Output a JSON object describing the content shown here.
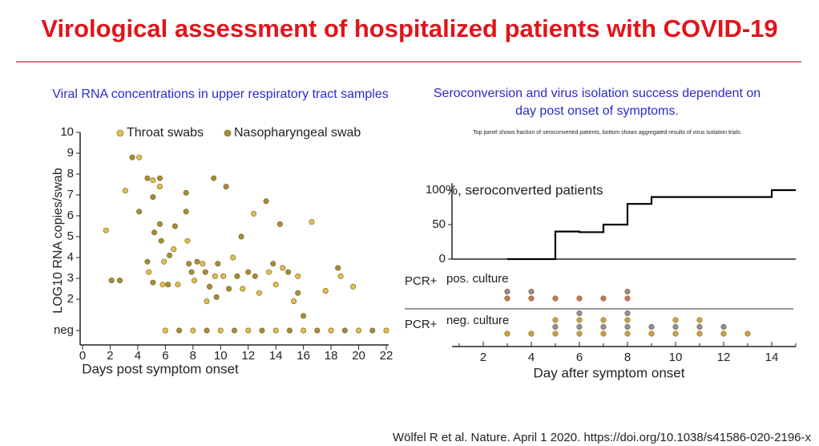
{
  "title": "Virological assessment of hospitalized patients with COVID-19",
  "citation": "Wölfel R et al. Nature. April 1 2020. https://doi.org/10.1038/s41586-020-2196-x",
  "chart_data": [
    {
      "type": "scatter",
      "title": "Viral RNA concentrations in upper respiratory tract samples",
      "xlabel": "Days post symptom onset",
      "ylabel": "LOG10 RNA copies/swab",
      "xlim": [
        0,
        22
      ],
      "xticks": [
        0,
        2,
        4,
        6,
        8,
        10,
        12,
        14,
        16,
        18,
        20,
        22
      ],
      "ylim": [
        0,
        10
      ],
      "yticks": [
        {
          "value": 0.5,
          "label": "neg"
        },
        2,
        3,
        4,
        5,
        6,
        7,
        8,
        9,
        10
      ],
      "series": [
        {
          "name": "Throat swabs",
          "color": "#e3c04c",
          "x": [
            1.7,
            3.1,
            4.1,
            5.1,
            5.6,
            4.8,
            5.8,
            5.9,
            6.6,
            6.9,
            7.6,
            8.1,
            8.7,
            9.0,
            9.6,
            10.2,
            10.9,
            11.6,
            12.4,
            12.8,
            13.5,
            14.0,
            14.5,
            15.3,
            15.6,
            16.6,
            17.6,
            18.7,
            19.6,
            6,
            8,
            10,
            12,
            14,
            16,
            18,
            20,
            22
          ],
          "values": [
            5.3,
            7.2,
            8.8,
            7.7,
            7.4,
            3.3,
            2.7,
            3.8,
            4.4,
            2.7,
            4.8,
            2.9,
            3.7,
            1.9,
            3.1,
            3.1,
            4.0,
            2.5,
            6.1,
            2.3,
            3.3,
            2.7,
            3.5,
            1.9,
            3.1,
            5.7,
            2.4,
            3.1,
            2.6,
            0.5,
            0.5,
            0.5,
            0.5,
            0.5,
            0.5,
            0.5,
            0.5,
            0.5
          ]
        },
        {
          "name": "Nasopharyngeal swab",
          "color": "#a88c3a",
          "x": [
            2.1,
            2.7,
            3.6,
            4.1,
            4.7,
            5.1,
            5.6,
            4.7,
            5.1,
            5.2,
            5.6,
            5.7,
            6.2,
            6.3,
            6.7,
            7.5,
            7.5,
            7.7,
            7.9,
            8.3,
            8.9,
            9.2,
            9.5,
            9.7,
            9.8,
            10.4,
            10.6,
            11.2,
            11.5,
            12.0,
            12.5,
            13.3,
            13.8,
            14.3,
            14.9,
            15.6,
            16.0,
            18.5,
            7,
            9,
            11,
            13,
            15,
            17,
            19,
            21
          ],
          "values": [
            2.9,
            2.9,
            8.8,
            6.2,
            7.8,
            6.9,
            7.8,
            3.8,
            2.8,
            5.2,
            5.6,
            4.8,
            2.7,
            4.1,
            5.5,
            7.1,
            6.2,
            3.7,
            3.3,
            3.8,
            3.3,
            2.6,
            7.8,
            2.1,
            3.7,
            7.4,
            2.5,
            3.1,
            5.0,
            3.3,
            3.1,
            6.7,
            3.7,
            5.6,
            3.3,
            2.3,
            1.2,
            3.5,
            0.5,
            0.5,
            0.5,
            0.5,
            0.5,
            0.5,
            0.5,
            0.5
          ]
        }
      ]
    },
    {
      "type": "step",
      "label": "%, seroconverted patients",
      "color": "#000000",
      "x": [
        3,
        5,
        6,
        7,
        8,
        9,
        14,
        15
      ],
      "values": [
        0,
        40,
        39,
        50,
        80,
        90,
        100,
        100
      ],
      "xlim": [
        0.7,
        15
      ],
      "ylim": [
        0,
        110
      ],
      "yticks": [
        0,
        50,
        100
      ]
    },
    {
      "type": "dotplot",
      "title": "Seroconversion and virus isolation success dependent on day post onset of symptoms.",
      "subtitle": "Top panel shows fraction of seroconverted patients, bottom shows aggregated results of virus isolation trials.",
      "xlabel": "Day after symptom onset",
      "xlim": [
        0.7,
        15
      ],
      "xticks": [
        2,
        4,
        6,
        8,
        10,
        12,
        14
      ],
      "x": [
        3,
        4,
        5,
        6,
        7,
        8,
        9,
        10,
        11,
        12,
        13
      ],
      "row_labels": [
        "PCR+",
        "PCR+"
      ],
      "series": [
        {
          "name": "pos. culture",
          "color": "#c9774a",
          "values": [
            2,
            2,
            1,
            1,
            1,
            2,
            0,
            0,
            0,
            0,
            0
          ]
        },
        {
          "name": "neg. culture",
          "color": "#c9a23c",
          "values": [
            1,
            1,
            3,
            4,
            3,
            4,
            2,
            3,
            3,
            2,
            1
          ]
        }
      ]
    }
  ]
}
